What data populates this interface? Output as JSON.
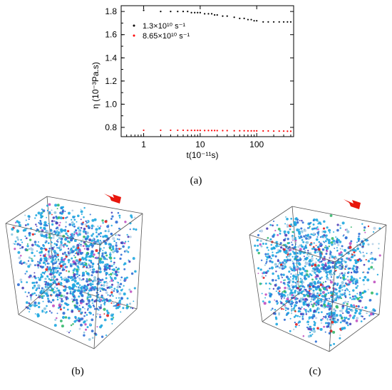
{
  "panels": {
    "a_label": "(a)",
    "b_label": "(b)",
    "c_label": "(c)"
  },
  "chart_data": {
    "type": "scatter",
    "xscale": "log",
    "xlabel": "t(10⁻¹¹s)",
    "ylabel": "η (10⁻³Pa.s)",
    "xlim": [
      0.4,
      450
    ],
    "ylim": [
      0.72,
      1.85
    ],
    "xticks": [
      "1",
      "10",
      "100"
    ],
    "yticks": [
      "0.8",
      "1.0",
      "1.2",
      "1.4",
      "1.6",
      "1.8"
    ],
    "legend_position": "top-left",
    "series": [
      {
        "name": "1.3×10¹⁰ s⁻¹",
        "color": "#000000",
        "x": [
          1,
          2,
          3,
          4,
          5,
          6,
          7,
          8,
          9,
          10,
          12,
          14,
          16,
          18,
          20,
          25,
          30,
          40,
          50,
          60,
          70,
          80,
          90,
          100,
          130,
          160,
          200,
          250,
          300,
          350,
          400
        ],
        "y": [
          1.81,
          1.8,
          1.8,
          1.8,
          1.8,
          1.8,
          1.79,
          1.79,
          1.79,
          1.79,
          1.78,
          1.78,
          1.78,
          1.77,
          1.77,
          1.76,
          1.76,
          1.75,
          1.74,
          1.74,
          1.73,
          1.73,
          1.72,
          1.72,
          1.71,
          1.71,
          1.71,
          1.71,
          1.71,
          1.71,
          1.71
        ]
      },
      {
        "name": "8.65×10¹⁰ s⁻¹",
        "color": "#ff0000",
        "x": [
          1,
          2,
          3,
          4,
          5,
          6,
          7,
          8,
          9,
          10,
          12,
          14,
          16,
          18,
          20,
          25,
          30,
          40,
          50,
          60,
          70,
          80,
          90,
          100,
          130,
          160,
          200,
          250,
          300,
          350,
          400
        ],
        "y": [
          0.775,
          0.775,
          0.775,
          0.775,
          0.775,
          0.774,
          0.774,
          0.774,
          0.774,
          0.774,
          0.773,
          0.773,
          0.773,
          0.773,
          0.772,
          0.772,
          0.772,
          0.771,
          0.771,
          0.771,
          0.77,
          0.77,
          0.77,
          0.77,
          0.769,
          0.769,
          0.768,
          0.768,
          0.768,
          0.767,
          0.767
        ]
      }
    ]
  },
  "render_colors": {
    "arrow": "#e8160c",
    "box_edge": "#555555",
    "particle_palette": [
      "#1ea7e0",
      "#2f6fd6",
      "#4b3fb8",
      "#33b86a",
      "#e02020",
      "#c04fc0",
      "#b8d0e8",
      "#8ec6e0"
    ]
  }
}
